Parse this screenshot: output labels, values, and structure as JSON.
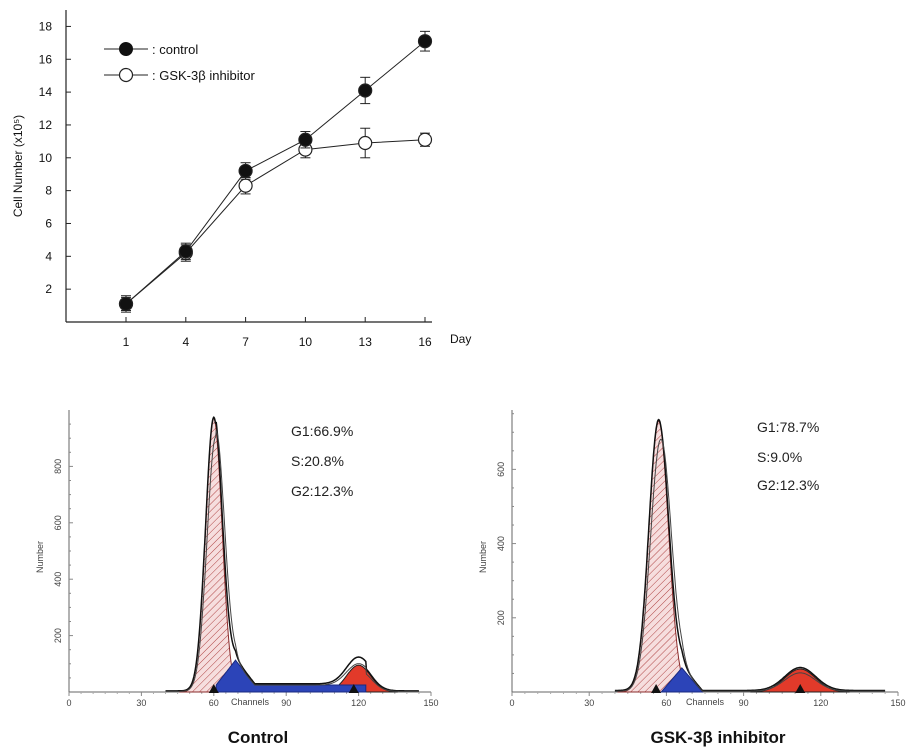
{
  "chart_data": [
    {
      "type": "line",
      "xlabel": "Day",
      "ylabel": "Cell Number (x10⁵)",
      "x": [
        1,
        4,
        7,
        10,
        13,
        16
      ],
      "ylim": [
        0,
        19
      ],
      "yticks": [
        2,
        4,
        6,
        8,
        10,
        12,
        14,
        16,
        18
      ],
      "legend_position": "top-left",
      "series": [
        {
          "name": ": control",
          "marker": "filled-circle",
          "values": [
            1.1,
            4.3,
            9.2,
            11.1,
            14.1,
            17.1
          ],
          "errors": [
            0.5,
            0.5,
            0.5,
            0.5,
            0.8,
            0.6
          ]
        },
        {
          "name": ": GSK-3β inhibitor",
          "marker": "open-circle",
          "values": [
            1.1,
            4.2,
            8.3,
            10.5,
            10.9,
            11.1
          ],
          "errors": [
            0.4,
            0.5,
            0.5,
            0.5,
            0.9,
            0.4
          ]
        }
      ]
    },
    {
      "type": "area",
      "title": "Control",
      "xlabel": "Channels",
      "ylabel": "Number",
      "xlim": [
        0,
        150
      ],
      "xticks": [
        0,
        30,
        60,
        90,
        120,
        150
      ],
      "ylim": [
        0,
        1000
      ],
      "yticks": [
        200,
        400,
        600,
        800
      ],
      "annotations": [
        "G1:66.9%",
        "S:20.8%",
        "G2:12.3%"
      ],
      "markers_x": [
        60,
        118
      ],
      "components": {
        "G1": {
          "center": 60,
          "height": 970,
          "sigma": 3.4,
          "color": "#c24040"
        },
        "S": {
          "start": 61,
          "end": 123,
          "level": 25,
          "peak": 88,
          "color": "#2c44b8"
        },
        "G2": {
          "center": 120,
          "height": 95,
          "sigma": 5,
          "color": "#e23a2a"
        }
      }
    },
    {
      "type": "area",
      "title": "GSK-3β inhibitor",
      "xlabel": "Channels",
      "ylabel": "Number",
      "xlim": [
        0,
        150
      ],
      "xticks": [
        0,
        30,
        60,
        90,
        120,
        150
      ],
      "ylim": [
        0,
        760
      ],
      "yticks": [
        200,
        400,
        600
      ],
      "annotations": [
        "G1:78.7%",
        "S:9.0%",
        "G2:12.3%"
      ],
      "markers_x": [
        56,
        112
      ],
      "components": {
        "G1": {
          "center": 57,
          "height": 730,
          "sigma": 3.8,
          "color": "#c24040"
        },
        "S": {
          "start": 58,
          "end": 74,
          "level": 0,
          "peak": 65,
          "color": "#2c44b8"
        },
        "G2": {
          "center": 112,
          "height": 62,
          "sigma": 6,
          "color": "#e23a2a"
        }
      }
    }
  ]
}
